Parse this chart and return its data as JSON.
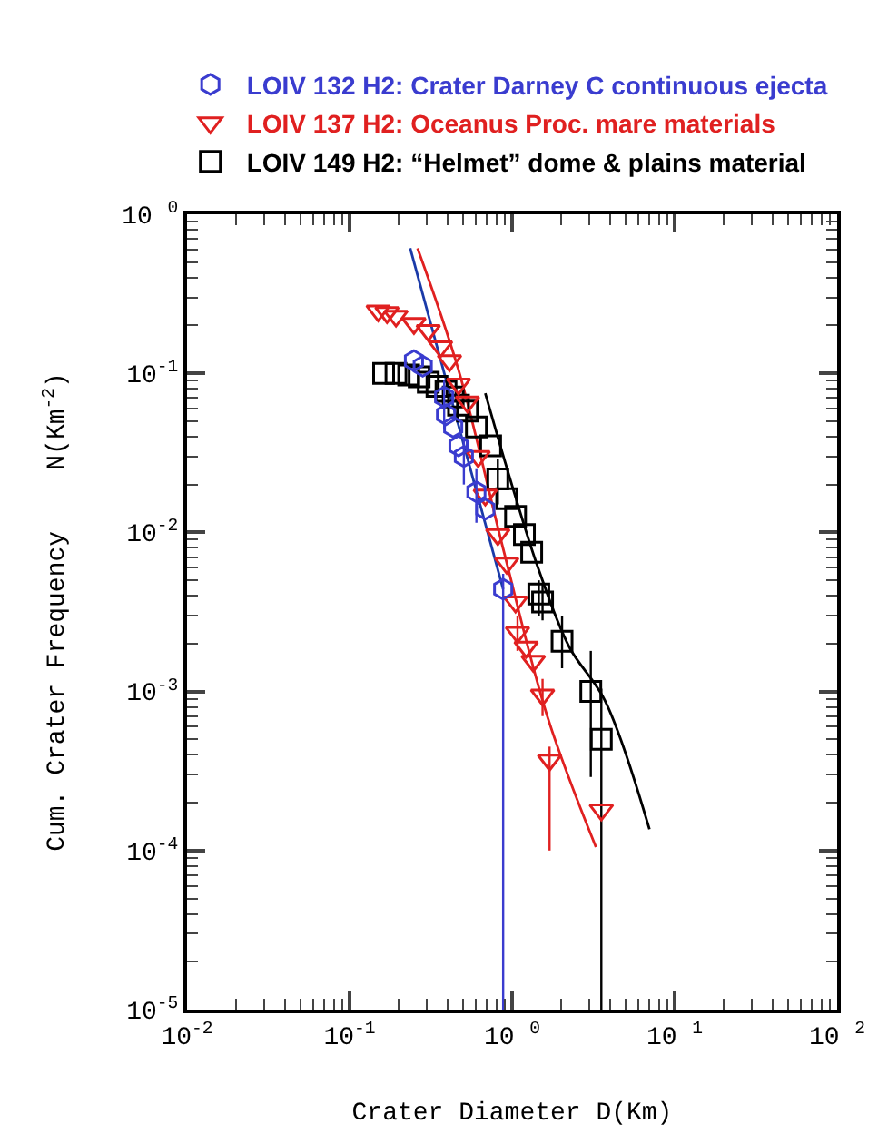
{
  "chart_data": {
    "type": "scatter",
    "xlabel": "Crater Diameter D(Km)",
    "ylabel": "Cum. Crater Frequency    N(Km$^{-2}$)",
    "log": "xy",
    "legend": "top",
    "xlim": [
      0.01,
      100
    ],
    "ylim": [
      1e-05,
      1
    ],
    "xticks": [
      {
        "value": 0.01,
        "label": "10$^{-2}$"
      },
      {
        "value": 0.1,
        "label": "10$^{-1}$"
      },
      {
        "value": 1,
        "label": "10 $^{0}$"
      },
      {
        "value": 10,
        "label": "10 $^{1}$"
      },
      {
        "value": 100,
        "label": "10 $^{2}$"
      }
    ],
    "yticks": [
      {
        "value": 1e-05,
        "label": "10$^{-5}$"
      },
      {
        "value": 0.0001,
        "label": "10$^{-4}$"
      },
      {
        "value": 0.001,
        "label": "10$^{-3}$"
      },
      {
        "value": 0.01,
        "label": "10$^{-2}$"
      },
      {
        "value": 0.1,
        "label": "10$^{-1}$"
      },
      {
        "value": 1,
        "label": "10 $^{0}$"
      }
    ],
    "series": [
      {
        "name": "LOIV 132 H2: Crater Darney C continuous ejecta",
        "color": "#3a3ccf",
        "x": [
          0.249,
          0.282,
          0.382,
          0.392,
          0.434,
          0.468,
          0.505,
          0.603,
          0.684,
          0.881
        ],
        "values": [
          0.12,
          0.111,
          0.071,
          0.055,
          0.046,
          0.035,
          0.03,
          0.018,
          0.014,
          0.0044
        ],
        "errors": [
          null,
          null,
          [
            0.045,
            0.09
          ],
          null,
          null,
          null,
          [
            0.02,
            0.04
          ],
          [
            0.0115,
            0.025
          ],
          null,
          [
            1e-05,
            0.0055
          ]
        ]
      },
      {
        "name": "LOIV 137 H2: Oceanus Proc. mare materials",
        "color": "#e02020",
        "marker": "triangle",
        "x": [
          0.15,
          0.17,
          0.193,
          0.249,
          0.305,
          0.363,
          0.412,
          0.468,
          0.531,
          0.618,
          0.684,
          0.817,
          0.927,
          1.05,
          1.08,
          1.22,
          1.35,
          1.54,
          1.7,
          3.54
        ],
        "values": [
          0.247,
          0.241,
          0.229,
          0.206,
          0.186,
          0.147,
          0.12,
          0.0857,
          0.066,
          0.03,
          0.0172,
          0.0097,
          0.0064,
          0.00365,
          0.00235,
          0.0019,
          0.00155,
          0.00095,
          0.00037,
          0.00018
        ],
        "errors": [
          null,
          null,
          null,
          null,
          null,
          null,
          null,
          null,
          null,
          null,
          null,
          null,
          null,
          null,
          [
            0.0018,
            0.003
          ],
          null,
          null,
          [
            0.0007,
            0.0012
          ],
          [
            0.0001,
            0.00045
          ],
          null
        ]
      },
      {
        "name": "LOIV 149 H2: “Helmet” dome & plains material",
        "color": "#000000",
        "marker": "square",
        "x": [
          0.162,
          0.193,
          0.231,
          0.268,
          0.305,
          0.345,
          0.392,
          0.434,
          0.468,
          0.531,
          0.603,
          0.738,
          0.817,
          0.927,
          1.05,
          1.19,
          1.32,
          1.46,
          1.54,
          2.03,
          3.05,
          3.54
        ],
        "values": [
          0.1,
          0.1,
          0.0975,
          0.095,
          0.088,
          0.083,
          0.077,
          0.071,
          0.063,
          0.058,
          0.046,
          0.035,
          0.0217,
          0.0163,
          0.0126,
          0.0097,
          0.0075,
          0.0041,
          0.00365,
          0.00207,
          0.001,
          0.0005
        ],
        "errors": [
          null,
          null,
          null,
          null,
          null,
          null,
          null,
          null,
          null,
          null,
          null,
          null,
          [
            0.015,
            0.029
          ],
          null,
          null,
          null,
          null,
          [
            0.003,
            0.005
          ],
          [
            0.0028,
            0.0048
          ],
          [
            0.0014,
            0.003
          ],
          [
            0.00029,
            0.0018
          ],
          [
            1e-05,
            0.00104
          ]
        ]
      },
      {
        "type": "line",
        "color": "#1a3aa8",
        "marker": "none",
        "x": [
          0.236,
          0.881
        ],
        "values": [
          0.611,
          0.0044
        ]
      },
      {
        "type": "line",
        "color": "#e02020",
        "marker": "none",
        "x": [
          0.262,
          0.468,
          0.881,
          1.66,
          3.28
        ],
        "values": [
          0.611,
          0.105,
          0.0079,
          0.00068,
          0.000105
        ]
      },
      {
        "type": "line",
        "color": "#000000",
        "marker": "none",
        "x": [
          0.684,
          1.0,
          1.46,
          2.25,
          3.72,
          7.0
        ],
        "values": [
          0.075,
          0.0197,
          0.0058,
          0.0019,
          0.00088,
          0.000136
        ]
      }
    ]
  }
}
